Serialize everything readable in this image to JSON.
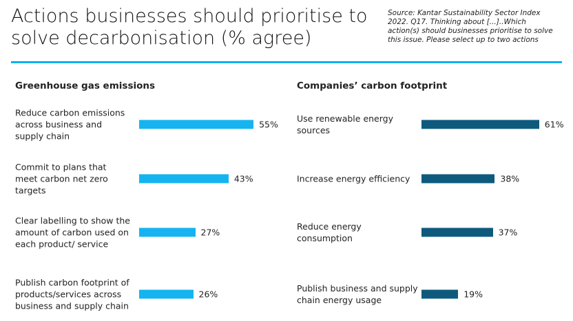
{
  "title": "Actions businesses should prioritise to solve decarbonisation (% agree)",
  "source": "Source: Kantar Sustainability Sector Index 2022. Q17. Thinking about [...]..Which action(s) should businesses prioritise to solve this issue. Please select up to two actions",
  "chart_data": [
    {
      "type": "bar",
      "orientation": "horizontal",
      "title": "Greenhouse gas emissions",
      "categories": [
        "Reduce carbon emissions across business and supply chain",
        "Commit to plans that meet carbon net zero targets",
        "Clear labelling to show the amount of carbon used on each product/ service",
        "Publish carbon footprint of products/services across business and supply chain"
      ],
      "values": [
        55,
        43,
        27,
        26
      ],
      "value_labels": [
        "55%",
        "43%",
        "27%",
        "26%"
      ],
      "color": "#15b4f1"
    },
    {
      "type": "bar",
      "orientation": "horizontal",
      "title": "Companies’ carbon footprint",
      "categories": [
        "Use renewable energy sources",
        "Increase energy efficiency",
        "Reduce energy consumption",
        "Publish business and supply chain energy usage"
      ],
      "values": [
        61,
        38,
        37,
        19
      ],
      "value_labels": [
        "61%",
        "38%",
        "37%",
        "19%"
      ],
      "color": "#0e5a7c"
    }
  ]
}
